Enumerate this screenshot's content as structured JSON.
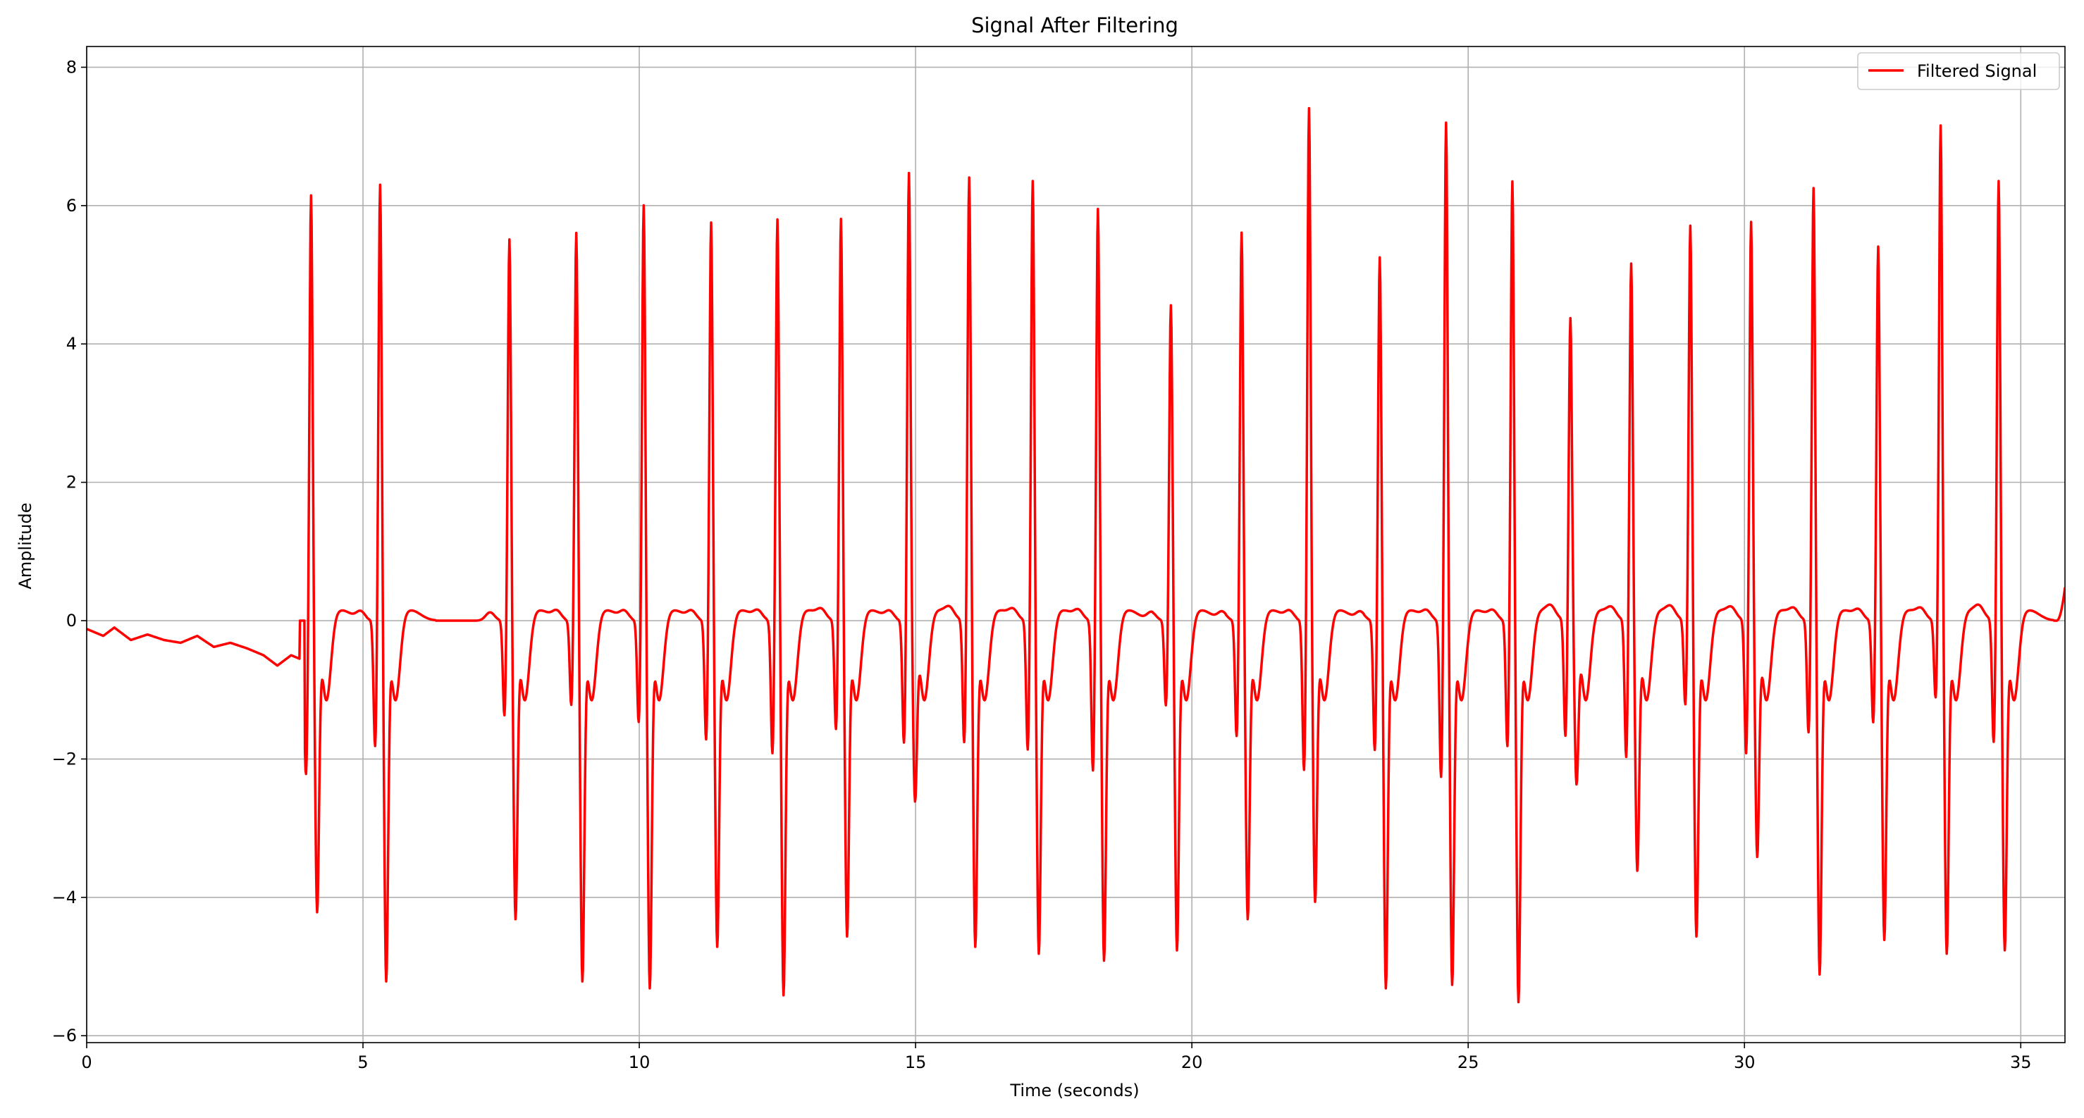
{
  "chart_data": {
    "type": "line",
    "title": "Signal After Filtering",
    "xlabel": "Time (seconds)",
    "ylabel": "Amplitude",
    "xlim": [
      0,
      35.8
    ],
    "ylim": [
      -6.1,
      8.3
    ],
    "x_ticks": [
      0,
      5,
      10,
      15,
      20,
      25,
      30,
      35
    ],
    "y_ticks": [
      -6,
      -4,
      -2,
      0,
      2,
      4,
      6,
      8
    ],
    "grid": true,
    "legend_position": "top-right",
    "series": [
      {
        "name": "Filtered Signal",
        "color": "#ff0000",
        "sample_interval": 0.02,
        "baseline": [
          [
            0,
            -0.12
          ],
          [
            0.3,
            -0.22
          ],
          [
            0.5,
            -0.1
          ],
          [
            0.8,
            -0.28
          ],
          [
            1.1,
            -0.2
          ],
          [
            1.4,
            -0.28
          ],
          [
            1.7,
            -0.32
          ],
          [
            2.0,
            -0.22
          ],
          [
            2.3,
            -0.38
          ],
          [
            2.6,
            -0.32
          ],
          [
            2.9,
            -0.4
          ],
          [
            3.2,
            -0.5
          ],
          [
            3.45,
            -0.65
          ],
          [
            3.7,
            -0.5
          ],
          [
            3.85,
            -0.55
          ]
        ],
        "beats": [
          {
            "t": 4.06,
            "r": 6.55,
            "q": -1.8,
            "s": -4.1
          },
          {
            "t": 5.31,
            "r": 6.55,
            "q": -1.85,
            "s": -5.1
          },
          {
            "t": 7.65,
            "r": 5.75,
            "q": -1.4,
            "s": -4.2
          },
          {
            "t": 8.86,
            "r": 5.85,
            "q": -1.25,
            "s": -5.1
          },
          {
            "t": 10.08,
            "r": 6.25,
            "q": -1.5,
            "s": -5.2
          },
          {
            "t": 11.3,
            "r": 6.0,
            "q": -1.75,
            "s": -4.6
          },
          {
            "t": 12.5,
            "r": 6.05,
            "q": -1.95,
            "s": -5.3
          },
          {
            "t": 13.65,
            "r": 6.05,
            "q": -1.6,
            "s": -4.45
          },
          {
            "t": 14.88,
            "r": 6.7,
            "q": -1.8,
            "s": -2.5
          },
          {
            "t": 15.97,
            "r": 6.65,
            "q": -1.8,
            "s": -4.6
          },
          {
            "t": 17.12,
            "r": 6.6,
            "q": -1.9,
            "s": -4.7
          },
          {
            "t": 18.3,
            "r": 6.2,
            "q": -2.2,
            "s": -4.8
          },
          {
            "t": 19.62,
            "r": 4.8,
            "q": -1.25,
            "s": -4.65
          },
          {
            "t": 20.9,
            "r": 5.85,
            "q": -1.7,
            "s": -4.2
          },
          {
            "t": 22.12,
            "r": 7.65,
            "q": -2.2,
            "s": -3.95
          },
          {
            "t": 23.4,
            "r": 5.5,
            "q": -1.9,
            "s": -5.2
          },
          {
            "t": 24.6,
            "r": 7.45,
            "q": -2.3,
            "s": -5.15
          },
          {
            "t": 25.8,
            "r": 6.6,
            "q": -1.85,
            "s": -5.4
          },
          {
            "t": 26.85,
            "r": 4.6,
            "q": -1.7,
            "s": -2.25
          },
          {
            "t": 27.95,
            "r": 5.4,
            "q": -2.0,
            "s": -3.5
          },
          {
            "t": 29.02,
            "r": 5.95,
            "q": -1.25,
            "s": -4.45
          },
          {
            "t": 30.12,
            "r": 6.0,
            "q": -1.95,
            "s": -3.3
          },
          {
            "t": 31.25,
            "r": 6.5,
            "q": -1.65,
            "s": -5.0
          },
          {
            "t": 32.42,
            "r": 5.65,
            "q": -1.5,
            "s": -4.5
          },
          {
            "t": 33.55,
            "r": 7.4,
            "q": -1.15,
            "s": -4.7
          },
          {
            "t": 34.6,
            "r": 6.6,
            "q": -1.8,
            "s": -4.65
          }
        ],
        "final_value": [
          35.8,
          0.48
        ]
      }
    ]
  }
}
